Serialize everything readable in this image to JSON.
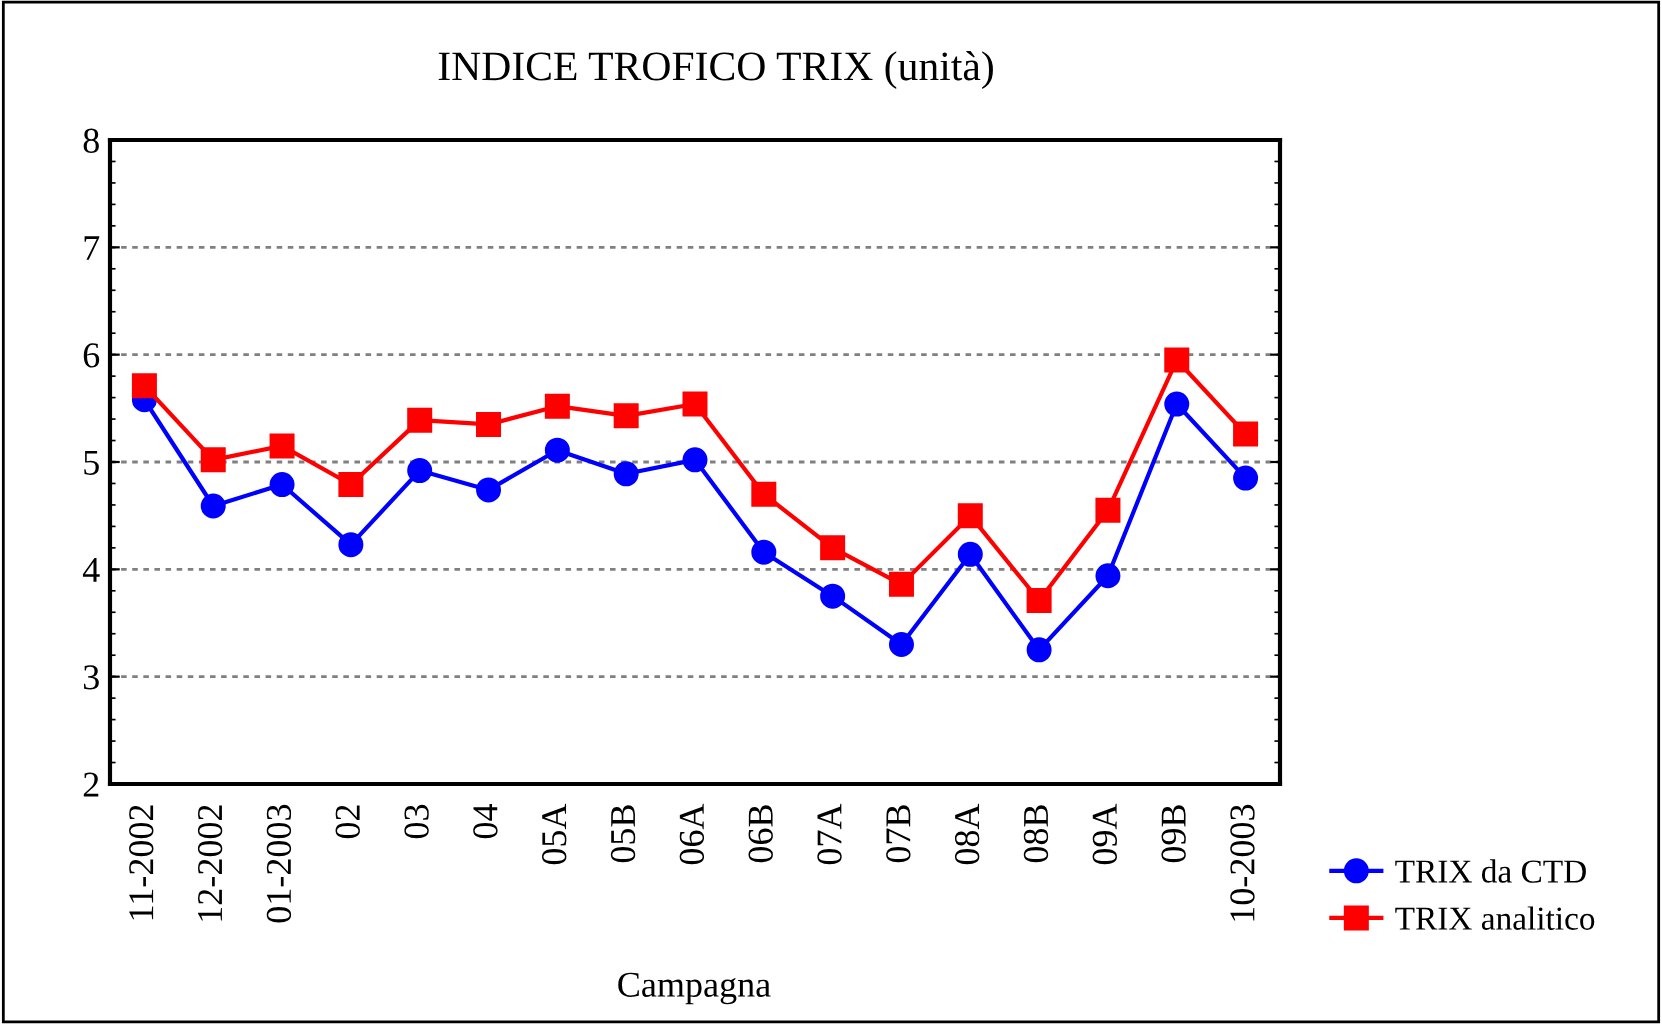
{
  "chart_data": {
    "type": "line",
    "title": "INDICE TROFICO TRIX (unità)",
    "xlabel": "Campagna",
    "categories": [
      "11-2002",
      "12-2002",
      "01-2003",
      "02",
      "03",
      "04",
      "05A",
      "05B",
      "06A",
      "06B",
      "07A",
      "07B",
      "08A",
      "08B",
      "09A",
      "09B",
      "10-2003"
    ],
    "series": [
      {
        "name": "TRIX da CTD",
        "color": "#0000ff",
        "marker": "circle",
        "values": [
          5.58,
          4.59,
          4.79,
          4.23,
          4.92,
          4.74,
          5.11,
          4.89,
          5.02,
          4.16,
          3.75,
          3.3,
          4.14,
          3.25,
          3.94,
          5.54,
          4.85
        ]
      },
      {
        "name": "TRIX analitico",
        "color": "#ff0000",
        "marker": "square",
        "values": [
          5.71,
          5.02,
          5.15,
          4.79,
          5.39,
          5.35,
          5.52,
          5.43,
          5.54,
          4.7,
          4.2,
          3.86,
          4.5,
          3.71,
          4.55,
          5.95,
          5.26
        ]
      }
    ],
    "ylim": [
      2,
      8
    ],
    "yticks": [
      2,
      3,
      4,
      5,
      6,
      7,
      8
    ],
    "grid": "y",
    "legend": "bottom right",
    "line_style": "solid"
  }
}
